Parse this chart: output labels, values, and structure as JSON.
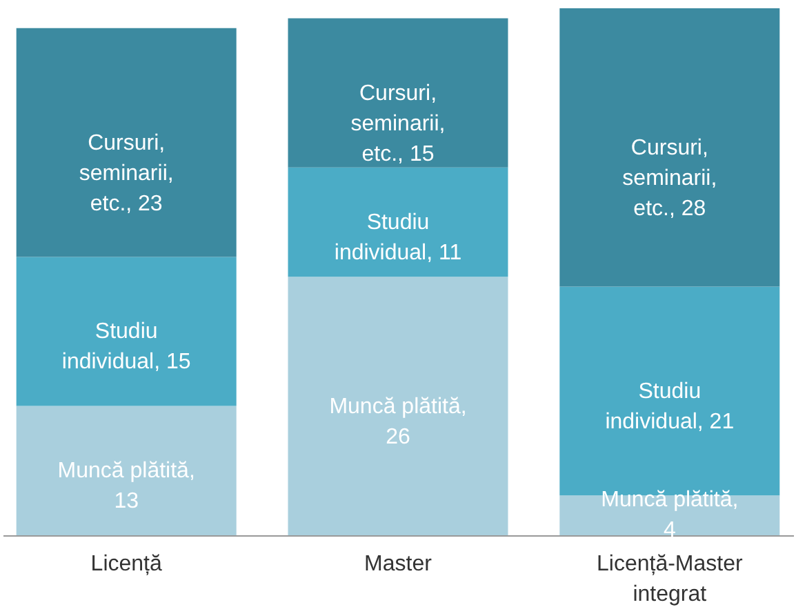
{
  "chart_data": {
    "type": "bar",
    "stacked": true,
    "categories": [
      "Licență",
      "Master",
      "Licență-Master integrat"
    ],
    "series": [
      {
        "color": "#a9cfdd",
        "values": [
          13,
          26,
          4
        ],
        "value_labels": [
          "Muncă plătită, 13",
          "Muncă plătită, 26",
          "Muncă plătită, 4"
        ]
      },
      {
        "color": "#4bacc6",
        "values": [
          15,
          11,
          21
        ],
        "value_labels": [
          "Studiu individual, 15",
          "Studiu individual, 11",
          "Studiu individual, 21"
        ]
      },
      {
        "color": "#3c8aa0",
        "values": [
          23,
          15,
          28
        ],
        "value_labels": [
          "Cursuri, seminarii, etc., 23",
          "Cursuri, seminarii, etc., 15",
          "Cursuri, seminarii, etc., 28"
        ]
      }
    ]
  }
}
